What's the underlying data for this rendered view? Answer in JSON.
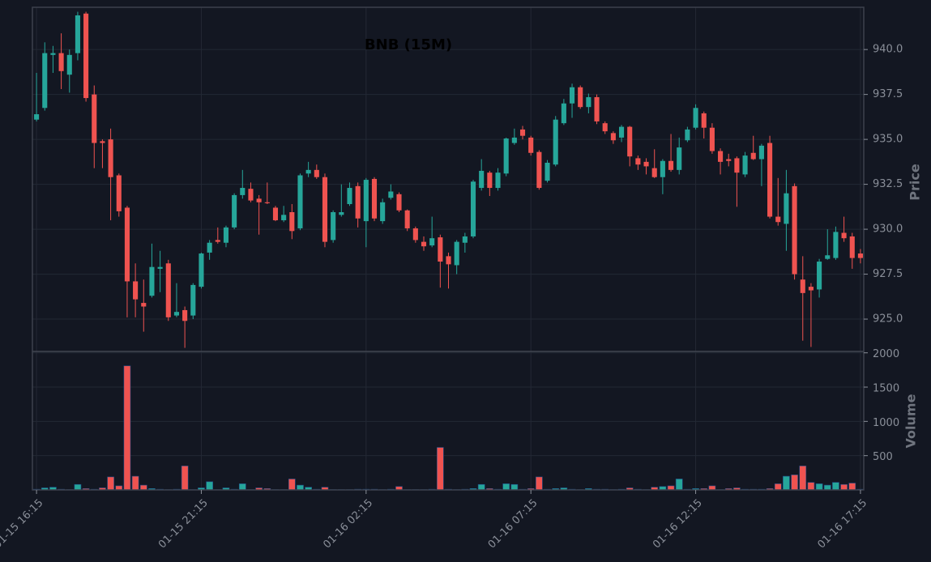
{
  "chart_data": {
    "type": "candlestick",
    "title": "BNB (15M)",
    "y_label": "Price",
    "volume_label": "Volume",
    "up_color": "#26a69a",
    "down_color": "#ef5350",
    "grid": true,
    "categories": [
      "01-15 16:15",
      null,
      null,
      null,
      null,
      null,
      null,
      null,
      null,
      null,
      null,
      null,
      null,
      null,
      null,
      null,
      null,
      null,
      null,
      null,
      "01-15 21:15",
      null,
      null,
      null,
      null,
      null,
      null,
      null,
      null,
      null,
      null,
      null,
      null,
      null,
      null,
      null,
      null,
      null,
      null,
      null,
      "01-16 02:15",
      null,
      null,
      null,
      null,
      null,
      null,
      null,
      null,
      null,
      null,
      null,
      null,
      null,
      null,
      null,
      null,
      null,
      null,
      null,
      "01-16 07:15",
      null,
      null,
      null,
      null,
      null,
      null,
      null,
      null,
      null,
      null,
      null,
      null,
      null,
      null,
      null,
      null,
      null,
      null,
      null,
      "01-16 12:15",
      null,
      null,
      null,
      null,
      null,
      null,
      null,
      null,
      null,
      null,
      null,
      null,
      null,
      null,
      null,
      null,
      null,
      null,
      null,
      "01-16 17:15"
    ],
    "xlim": [
      -0.5,
      100.4
    ],
    "open": [
      936.1,
      936.75,
      939.7,
      939.8,
      938.6,
      939.8,
      942.0,
      937.5,
      934.9,
      935.0,
      933.0,
      931.2,
      927.1,
      925.9,
      926.3,
      927.8,
      928.1,
      925.2,
      925.5,
      925.2,
      926.8,
      928.7,
      929.4,
      929.25,
      930.1,
      931.9,
      932.25,
      931.7,
      931.5,
      931.2,
      930.5,
      930.95,
      930.05,
      933.1,
      933.3,
      932.9,
      929.4,
      930.8,
      931.4,
      932.4,
      930.45,
      932.8,
      930.45,
      931.75,
      931.95,
      931.05,
      930.05,
      929.3,
      929.1,
      929.55,
      928.5,
      928.0,
      929.25,
      929.6,
      932.3,
      933.15,
      932.3,
      933.1,
      934.8,
      935.55,
      935.1,
      934.3,
      932.7,
      933.6,
      935.9,
      937.0,
      937.9,
      936.8,
      937.35,
      935.9,
      935.35,
      935.1,
      935.7,
      933.95,
      933.75,
      933.4,
      932.9,
      933.8,
      933.3,
      934.95,
      935.65,
      936.45,
      935.65,
      934.35,
      933.9,
      933.95,
      933.05,
      934.25,
      933.9,
      934.8,
      930.7,
      930.3,
      932.4,
      927.2,
      926.8,
      926.65,
      928.35,
      928.4,
      929.8,
      929.6,
      928.65
    ],
    "high": [
      938.7,
      940.4,
      940.2,
      940.9,
      940.0,
      942.1,
      942.1,
      938.0,
      935.0,
      935.6,
      933.1,
      931.3,
      928.1,
      927.2,
      929.2,
      928.8,
      928.3,
      927.0,
      925.7,
      927.0,
      928.7,
      929.4,
      930.1,
      930.2,
      932.0,
      933.3,
      932.6,
      931.9,
      932.6,
      931.3,
      931.3,
      931.4,
      933.1,
      933.75,
      933.6,
      933.1,
      931.05,
      932.5,
      932.6,
      932.6,
      932.85,
      932.9,
      931.7,
      932.5,
      932.05,
      931.1,
      930.15,
      929.6,
      930.7,
      929.7,
      928.7,
      929.4,
      929.8,
      932.75,
      933.9,
      933.25,
      933.4,
      935.1,
      935.6,
      935.75,
      935.2,
      934.4,
      933.85,
      936.3,
      937.25,
      938.1,
      938.0,
      937.55,
      937.5,
      936.0,
      935.45,
      935.8,
      935.75,
      934.1,
      933.95,
      934.45,
      933.9,
      935.3,
      935.1,
      935.7,
      936.95,
      936.55,
      935.9,
      934.5,
      934.2,
      934.05,
      934.3,
      935.2,
      934.75,
      935.2,
      932.85,
      933.3,
      932.55,
      928.5,
      927.0,
      928.35,
      930.0,
      930.15,
      930.7,
      929.8,
      928.9
    ],
    "low": [
      936.0,
      936.6,
      938.7,
      937.8,
      937.6,
      939.4,
      937.1,
      933.4,
      933.4,
      930.5,
      930.7,
      925.1,
      925.1,
      924.3,
      926.2,
      926.5,
      924.9,
      925.1,
      923.4,
      925.0,
      926.7,
      928.3,
      929.2,
      929.0,
      930.0,
      931.7,
      931.5,
      929.7,
      931.4,
      930.45,
      930.4,
      929.45,
      929.95,
      932.9,
      932.8,
      929.0,
      929.25,
      930.7,
      931.3,
      930.1,
      929.0,
      930.45,
      930.3,
      931.65,
      930.95,
      929.9,
      929.25,
      928.8,
      929.0,
      926.75,
      926.7,
      927.5,
      928.7,
      929.5,
      932.15,
      931.85,
      932.15,
      932.95,
      934.7,
      935.0,
      934.1,
      932.2,
      932.6,
      933.5,
      935.8,
      936.2,
      936.7,
      936.45,
      935.85,
      935.3,
      934.75,
      934.85,
      933.5,
      933.3,
      933.05,
      932.85,
      931.95,
      933.2,
      933.05,
      934.85,
      935.55,
      935.05,
      934.2,
      933.05,
      933.5,
      931.25,
      932.9,
      933.85,
      932.4,
      930.6,
      930.2,
      928.8,
      927.2,
      923.8,
      923.45,
      926.2,
      928.3,
      928.3,
      929.3,
      927.8,
      928.1
    ],
    "close": [
      936.4,
      939.8,
      939.8,
      938.8,
      939.7,
      941.9,
      937.3,
      934.8,
      934.8,
      932.9,
      931.0,
      927.1,
      926.1,
      925.7,
      927.9,
      927.9,
      925.1,
      925.4,
      924.9,
      926.9,
      928.65,
      929.25,
      929.3,
      930.1,
      931.9,
      932.3,
      931.6,
      931.5,
      931.45,
      930.5,
      930.8,
      929.9,
      933.0,
      933.3,
      932.9,
      929.3,
      930.95,
      930.95,
      932.3,
      930.6,
      932.75,
      930.6,
      931.5,
      932.1,
      931.05,
      930.05,
      929.4,
      929.05,
      929.5,
      928.2,
      928.05,
      929.3,
      929.6,
      932.65,
      933.25,
      932.3,
      933.15,
      935.05,
      935.1,
      935.2,
      934.25,
      932.3,
      933.7,
      936.1,
      937.0,
      937.9,
      936.8,
      937.35,
      936.0,
      935.45,
      934.95,
      935.7,
      934.05,
      933.6,
      933.5,
      932.9,
      933.8,
      933.3,
      934.55,
      935.55,
      936.75,
      935.65,
      934.35,
      933.75,
      933.8,
      933.15,
      934.1,
      933.9,
      934.65,
      930.7,
      930.4,
      932.0,
      927.5,
      926.45,
      926.6,
      928.2,
      928.55,
      929.85,
      929.5,
      928.4,
      928.4
    ],
    "volume": [
      10,
      30,
      40,
      10,
      5,
      80,
      20,
      10,
      30,
      190,
      60,
      1810,
      200,
      70,
      20,
      10,
      5,
      10,
      350,
      5,
      30,
      120,
      5,
      30,
      10,
      90,
      5,
      30,
      20,
      5,
      5,
      160,
      70,
      40,
      10,
      40,
      5,
      5,
      5,
      10,
      10,
      10,
      5,
      10,
      50,
      5,
      5,
      5,
      10,
      620,
      10,
      5,
      10,
      20,
      80,
      20,
      10,
      90,
      80,
      10,
      20,
      190,
      10,
      20,
      30,
      10,
      5,
      20,
      10,
      10,
      5,
      10,
      30,
      10,
      5,
      40,
      50,
      60,
      160,
      10,
      20,
      20,
      60,
      5,
      20,
      30,
      10,
      10,
      10,
      20,
      90,
      200,
      220,
      350,
      110,
      90,
      70,
      110,
      80,
      100,
      10
    ],
    "ylim": [
      923.2,
      942.35
    ],
    "yticks": [
      {
        "value": 925,
        "label": "925.0"
      },
      {
        "value": 927.5,
        "label": "927.5"
      },
      {
        "value": 930,
        "label": "930.0"
      },
      {
        "value": 932.5,
        "label": "932.5"
      },
      {
        "value": 935,
        "label": "935.0"
      },
      {
        "value": 937.5,
        "label": "937.5"
      },
      {
        "value": 940,
        "label": "940.0"
      }
    ],
    "volume_ylim": [
      0,
      2020
    ],
    "volume_yticks": [
      500,
      1000,
      1500,
      2000
    ]
  }
}
